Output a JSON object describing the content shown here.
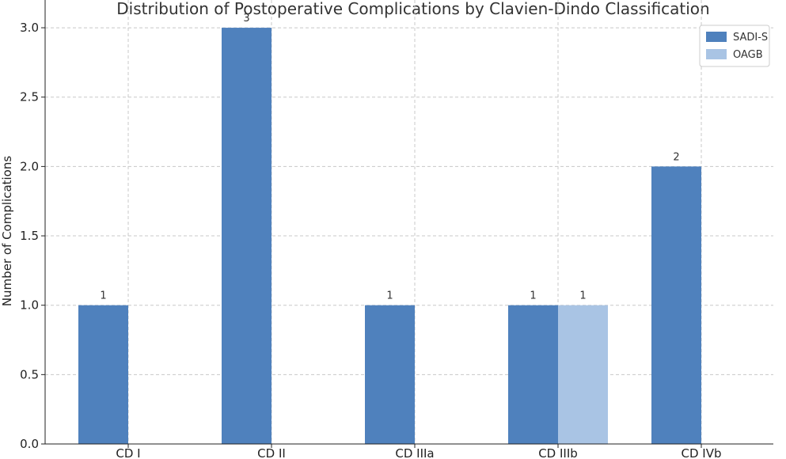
{
  "chart_data": {
    "type": "bar",
    "title": "Distribution of Postoperative Complications by Clavien-Dindo Classification",
    "xlabel": "",
    "ylabel": "Number of Complications",
    "categories": [
      "CD I",
      "CD II",
      "CD IIIa",
      "CD IIIb",
      "CD IVb"
    ],
    "series": [
      {
        "name": "SADI-S",
        "color": "#4f81bd",
        "values": [
          1,
          3,
          1,
          1,
          2
        ]
      },
      {
        "name": "OAGB",
        "color": "#a9c4e4",
        "values": [
          0,
          0,
          0,
          1,
          0
        ]
      }
    ],
    "ylim": [
      0,
      3.2
    ],
    "yticks": [
      "0.0",
      "0.5",
      "1.0",
      "1.5",
      "2.0",
      "2.5",
      "3.0"
    ],
    "grid": true,
    "legend_position": "top-right",
    "show_value_labels": true
  }
}
